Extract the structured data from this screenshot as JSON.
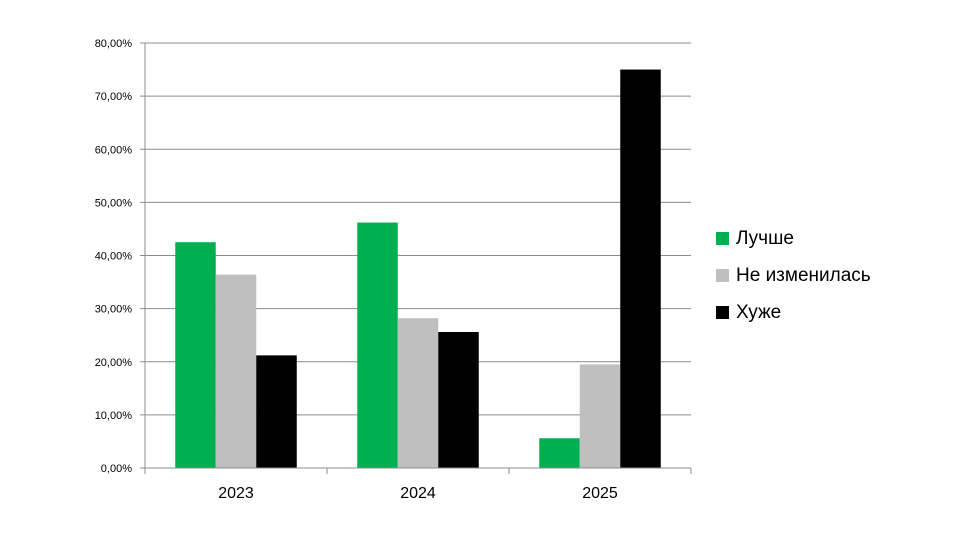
{
  "chart_data": {
    "type": "bar",
    "categories": [
      "2023",
      "2024",
      "2025"
    ],
    "series": [
      {
        "name": "Лучше",
        "color": "#00b050",
        "values": [
          42.5,
          46.2,
          5.6
        ]
      },
      {
        "name": "Не изменилась",
        "color": "#bfbfbf",
        "values": [
          36.4,
          28.2,
          19.5
        ]
      },
      {
        "name": "Хуже",
        "color": "#000000",
        "values": [
          21.2,
          25.6,
          75.0
        ]
      }
    ],
    "yticks": [
      "0,00%",
      "10,00%",
      "20,00%",
      "30,00%",
      "40,00%",
      "50,00%",
      "60,00%",
      "70,00%",
      "80,00%"
    ],
    "ylim": [
      0,
      80
    ],
    "grid": true,
    "legend_position": "right"
  }
}
